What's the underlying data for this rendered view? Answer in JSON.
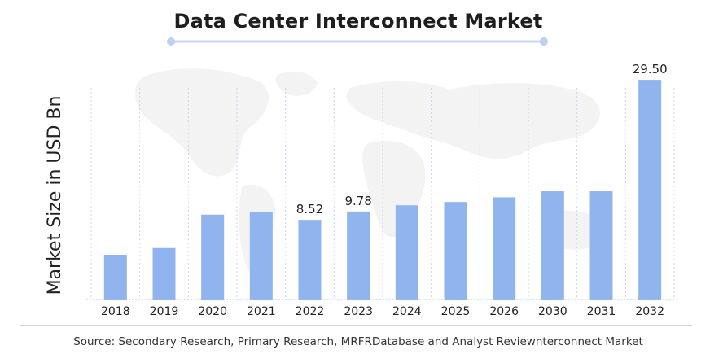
{
  "chart_data": {
    "type": "bar",
    "title": "Data Center Interconnect Market",
    "ylabel": "Market Size in USD Bn",
    "xlabel": "",
    "categories": [
      "2018",
      "2019",
      "2020",
      "2021",
      "2022",
      "2023",
      "2024",
      "2025",
      "2026",
      "2030",
      "2031",
      "2032"
    ],
    "values": [
      3.3,
      4.3,
      9.3,
      9.7,
      8.52,
      9.78,
      10.7,
      11.2,
      11.9,
      12.8,
      12.8,
      29.5
    ],
    "data_labels": [
      {
        "index": 4,
        "text": "8.52"
      },
      {
        "index": 5,
        "text": "9.78"
      },
      {
        "index": 11,
        "text": "29.50"
      }
    ],
    "grid": "vertical-dotted",
    "colors": {
      "bar": "#8fb4ee",
      "accent_line": "#c7d8f6",
      "accent_dot": "#bcd0f4",
      "grid": "#c9d5ea",
      "baseline": "#a9c0e8"
    }
  },
  "source": "Source: Secondary Research, Primary Research, MRFRDatabase and Analyst Reviewnterconnect Market"
}
